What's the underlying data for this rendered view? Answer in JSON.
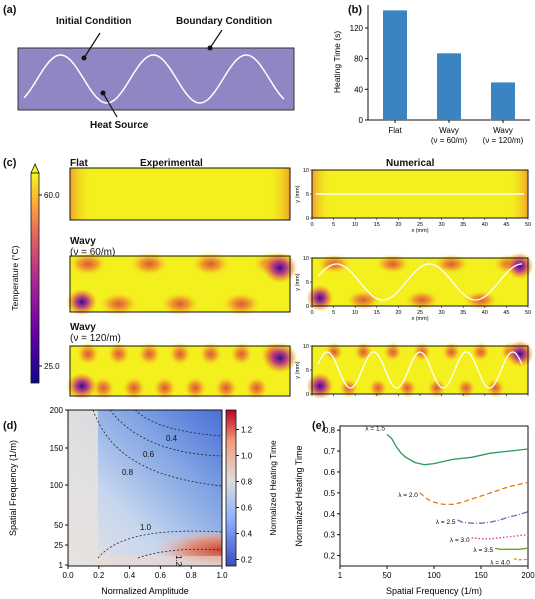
{
  "panel_a": {
    "label": "(a)",
    "annotations": {
      "initial": "Initial Condition",
      "boundary": "Boundary Condition",
      "source": "Heat Source"
    },
    "colors": {
      "plate": "#8f86c4",
      "wave": "#ffffff"
    }
  },
  "panel_b": {
    "label": "(b)",
    "chart_data": {
      "type": "bar",
      "categories": [
        "Flat",
        "Wavy (ν = 60/m)",
        "Wavy (ν = 120/m)"
      ],
      "category_lines": [
        [
          "Flat"
        ],
        [
          "Wavy",
          "(ν = 60/m)"
        ],
        [
          "Wavy",
          "(ν = 120/m)"
        ]
      ],
      "values": [
        143,
        87,
        49
      ],
      "ylabel": "Heating Time (s)",
      "ylim": [
        0,
        150
      ],
      "yticks": [
        "0",
        "40",
        "80",
        "120"
      ],
      "color": "#3a84c1"
    }
  },
  "panel_c": {
    "label": "(c)",
    "col_headers": {
      "experimental": "Experimental",
      "numerical": "Numerical"
    },
    "cases": [
      {
        "title": "Flat",
        "sub": ""
      },
      {
        "title": "Wavy",
        "sub": "(ν = 60/m)"
      },
      {
        "title": "Wavy",
        "sub": "(ν = 120/m)"
      }
    ],
    "colorbar": {
      "label": "Temperature (°C)",
      "max": "60.0",
      "min": "25.0"
    },
    "axes": {
      "xlabel": "x (mm)",
      "ylabel": "y (mm)",
      "xticks": [
        "0",
        "5",
        "10",
        "15",
        "20",
        "25",
        "30",
        "35",
        "40",
        "45",
        "50"
      ],
      "yticks": [
        "0",
        "5",
        "10"
      ]
    },
    "colors": {
      "field": "#f4f01e",
      "warm": "#f0a02a",
      "hot": "#d4513a",
      "cool": "#6a0fa0"
    }
  },
  "panel_d": {
    "label": "(d)",
    "chart_data": {
      "type": "heatmap",
      "xlabel": "Normalized Amplitude",
      "ylabel": "Spatial Frequency (1/m)",
      "xticks": [
        "0.0",
        "0.2",
        "0.4",
        "0.6",
        "0.8",
        "1.0"
      ],
      "yticks": [
        "1",
        "25",
        "50",
        "100",
        "150",
        "200"
      ],
      "contours": [
        "0.4",
        "0.6",
        "0.8",
        "1.0",
        "1.2"
      ],
      "colorbar": {
        "label": "Normalized Heating Time",
        "ticks": [
          "0.2",
          "0.4",
          "0.6",
          "0.8",
          "1.0",
          "1.2"
        ],
        "range": [
          0.15,
          1.35
        ]
      }
    }
  },
  "panel_e": {
    "label": "(e)",
    "chart_data": {
      "type": "line",
      "xlabel": "Spatial Frequency (1/m)",
      "ylabel": "Normalized Heating Time",
      "xticks": [
        "1",
        "50",
        "100",
        "150",
        "200"
      ],
      "yticks": [
        "0.2",
        "0.3",
        "0.4",
        "0.5",
        "0.6",
        "0.7",
        "0.8"
      ],
      "ylim": [
        0.15,
        0.82
      ],
      "series": [
        {
          "name": "λ = 1.5",
          "color": "#2a9a5a",
          "dash": "",
          "x": [
            50,
            55,
            60,
            65,
            70,
            80,
            90,
            100,
            120,
            140,
            160,
            180,
            200
          ],
          "y": [
            0.78,
            0.76,
            0.72,
            0.69,
            0.67,
            0.645,
            0.635,
            0.64,
            0.66,
            0.67,
            0.69,
            0.7,
            0.71
          ]
        },
        {
          "name": "λ = 2.0",
          "color": "#e07a1a",
          "dash": "5,3",
          "x": [
            85,
            90,
            95,
            100,
            110,
            120,
            130,
            140,
            160,
            180,
            200
          ],
          "y": [
            0.5,
            0.48,
            0.465,
            0.455,
            0.445,
            0.445,
            0.455,
            0.47,
            0.5,
            0.53,
            0.55
          ]
        },
        {
          "name": "λ = 2.5",
          "color": "#6f6ab5",
          "dash": "6,2,1,2",
          "x": [
            125,
            130,
            140,
            150,
            160,
            170,
            180,
            190,
            200
          ],
          "y": [
            0.37,
            0.36,
            0.355,
            0.355,
            0.36,
            0.37,
            0.385,
            0.395,
            0.41
          ]
        },
        {
          "name": "λ = 3.0",
          "color": "#d43aa0",
          "dash": "1.5,2",
          "x": [
            140,
            150,
            160,
            170,
            180,
            190,
            200
          ],
          "y": [
            0.285,
            0.28,
            0.28,
            0.285,
            0.29,
            0.295,
            0.3
          ]
        },
        {
          "name": "λ = 3.5",
          "color": "#6aa52a",
          "dash": "",
          "x": [
            165,
            170,
            180,
            190,
            200
          ],
          "y": [
            0.235,
            0.23,
            0.23,
            0.23,
            0.235
          ]
        },
        {
          "name": "λ = 4.0",
          "color": "#c4a21a",
          "dash": "3,2",
          "x": [
            185,
            190,
            195,
            200
          ],
          "y": [
            0.185,
            0.18,
            0.18,
            0.182
          ]
        }
      ]
    }
  }
}
